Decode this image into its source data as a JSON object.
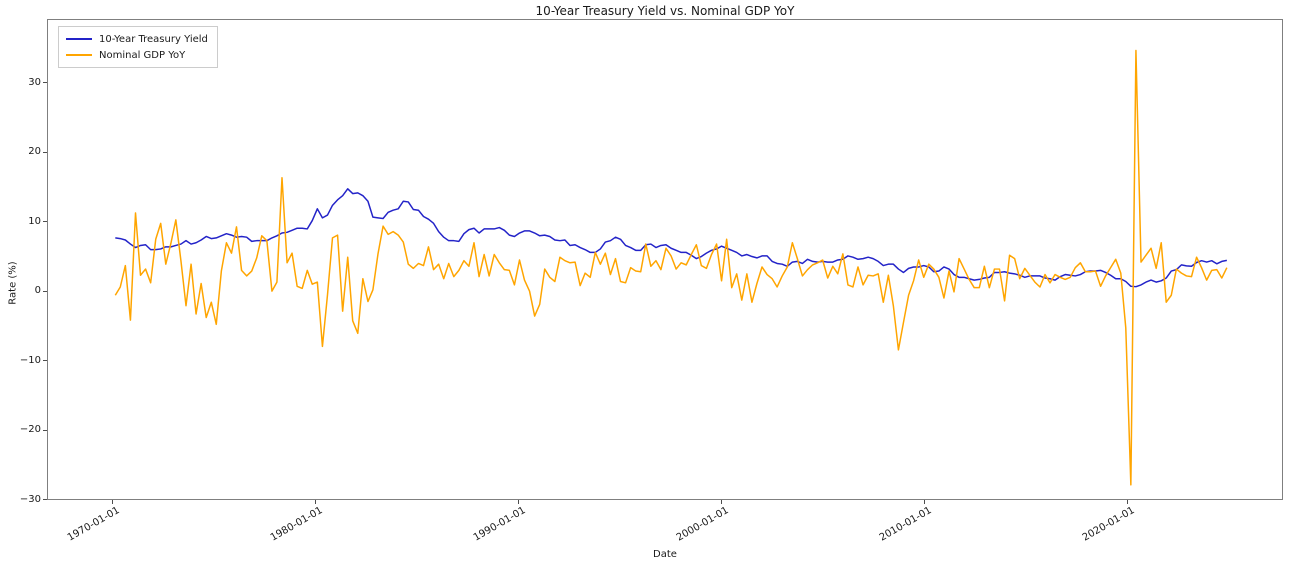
{
  "figure": {
    "title": "10-Year Treasury Yield vs. Nominal GDP YoY",
    "xlabel": "Date",
    "ylabel": "Rate (%)"
  },
  "legend": {
    "items": [
      {
        "label": "10-Year Treasury Yield",
        "color": "#2323c8"
      },
      {
        "label": "Nominal GDP YoY",
        "color": "#ffa500"
      }
    ]
  },
  "chart_data": {
    "type": "line",
    "title": "10-Year Treasury Yield vs. Nominal GDP YoY",
    "xlabel": "Date",
    "ylabel": "Rate (%)",
    "grid": false,
    "legend_position": "upper left",
    "x_start_year": 1970.0,
    "x_step_years": 0.25,
    "x_frequency": "quarterly",
    "xlim_years": [
      1966.75,
      2027.65
    ],
    "ylim": [
      -30.05,
      39.2
    ],
    "x_tick_years": [
      1970,
      1980,
      1990,
      2000,
      2010,
      2020
    ],
    "x_tick_labels": [
      "1970-01-01",
      "1980-01-01",
      "1990-01-01",
      "2000-01-01",
      "2010-01-01",
      "2020-01-01"
    ],
    "y_ticks": [
      30,
      20,
      10,
      0,
      -10,
      -20,
      -30
    ],
    "y_tick_labels": [
      "30",
      "20",
      "10",
      "0",
      "−10",
      "−20",
      "−30"
    ],
    "series": [
      {
        "name": "10-Year Treasury Yield",
        "color": "#2323c8",
        "values": [
          7.7,
          7.6,
          7.4,
          6.8,
          6.3,
          6.6,
          6.7,
          6.0,
          6.0,
          6.1,
          6.4,
          6.4,
          6.6,
          6.8,
          7.3,
          6.8,
          7.0,
          7.4,
          7.9,
          7.6,
          7.7,
          8.0,
          8.3,
          8.1,
          7.8,
          7.9,
          7.8,
          7.2,
          7.3,
          7.3,
          7.3,
          7.7,
          8.0,
          8.4,
          8.5,
          8.8,
          9.1,
          9.1,
          9.0,
          10.2,
          11.9,
          10.6,
          11.0,
          12.4,
          13.2,
          13.8,
          14.8,
          14.1,
          14.2,
          13.8,
          13.0,
          10.7,
          10.6,
          10.5,
          11.4,
          11.7,
          11.9,
          13.0,
          12.9,
          11.8,
          11.7,
          10.8,
          10.4,
          9.8,
          8.6,
          7.8,
          7.3,
          7.3,
          7.2,
          8.3,
          8.9,
          9.1,
          8.4,
          9.0,
          9.0,
          9.0,
          9.2,
          8.8,
          8.1,
          7.9,
          8.4,
          8.7,
          8.7,
          8.4,
          8.0,
          8.1,
          7.9,
          7.4,
          7.3,
          7.4,
          6.6,
          6.7,
          6.3,
          6.0,
          5.6,
          5.6,
          6.1,
          7.1,
          7.3,
          7.8,
          7.5,
          6.6,
          6.3,
          5.9,
          5.9,
          6.7,
          6.8,
          6.3,
          6.6,
          6.7,
          6.2,
          5.9,
          5.6,
          5.6,
          5.2,
          4.7,
          5.0,
          5.5,
          5.9,
          6.1,
          6.5,
          6.2,
          5.9,
          5.6,
          5.1,
          5.3,
          5.0,
          4.8,
          5.1,
          5.1,
          4.3,
          4.0,
          3.9,
          3.6,
          4.2,
          4.3,
          4.0,
          4.6,
          4.3,
          4.2,
          4.3,
          4.2,
          4.2,
          4.5,
          4.6,
          5.1,
          4.9,
          4.6,
          4.7,
          4.9,
          4.7,
          4.3,
          3.7,
          3.9,
          3.9,
          3.2,
          2.7,
          3.3,
          3.5,
          3.5,
          3.7,
          3.5,
          2.8,
          2.9,
          3.5,
          3.2,
          2.4,
          2.0,
          2.0,
          1.8,
          1.6,
          1.7,
          1.9,
          2.0,
          2.7,
          2.7,
          2.8,
          2.6,
          2.5,
          2.3,
          2.0,
          2.2,
          2.2,
          2.2,
          1.9,
          1.8,
          1.6,
          2.1,
          2.4,
          2.3,
          2.2,
          2.4,
          2.8,
          2.9,
          2.9,
          3.0,
          2.7,
          2.3,
          1.8,
          1.8,
          1.4,
          0.7,
          0.65,
          0.9,
          1.3,
          1.6,
          1.3,
          1.5,
          1.9,
          2.9,
          3.1,
          3.8,
          3.65,
          3.6,
          4.15,
          4.4,
          4.2,
          4.4,
          3.95,
          4.3,
          4.45
        ]
      },
      {
        "name": "Nominal GDP YoY",
        "color": "#ffa500",
        "values": [
          -0.6,
          0.6,
          3.7,
          -4.2,
          11.3,
          2.3,
          3.2,
          1.2,
          7.5,
          9.8,
          3.9,
          6.9,
          10.3,
          4.4,
          -2.1,
          3.9,
          -3.3,
          1.1,
          -3.8,
          -1.6,
          -4.8,
          2.9,
          7.0,
          5.5,
          9.3,
          3.0,
          2.2,
          2.9,
          4.8,
          8.0,
          7.3,
          0.0,
          1.3,
          16.4,
          4.1,
          5.5,
          0.7,
          0.4,
          3.0,
          1.0,
          1.3,
          -8.0,
          -0.5,
          7.7,
          8.1,
          -2.9,
          4.9,
          -4.3,
          -6.1,
          1.8,
          -1.5,
          0.2,
          5.4,
          9.4,
          8.2,
          8.6,
          8.1,
          7.1,
          3.9,
          3.3,
          4.0,
          3.7,
          6.4,
          3.1,
          3.9,
          1.8,
          4.0,
          2.1,
          3.0,
          4.4,
          3.6,
          7.0,
          2.1,
          5.3,
          2.2,
          5.3,
          4.1,
          3.1,
          3.0,
          0.9,
          4.5,
          1.6,
          0.0,
          -3.6,
          -1.9,
          3.2,
          2.0,
          1.4,
          4.9,
          4.4,
          4.1,
          4.2,
          0.8,
          2.6,
          2.0,
          5.6,
          3.9,
          5.5,
          2.4,
          4.7,
          1.4,
          1.2,
          3.4,
          2.9,
          2.8,
          6.8,
          3.6,
          4.4,
          3.1,
          6.2,
          5.1,
          3.2,
          4.1,
          3.8,
          5.3,
          6.7,
          3.7,
          3.3,
          5.3,
          6.8,
          1.5,
          7.5,
          0.5,
          2.5,
          -1.3,
          2.5,
          -1.6,
          1.1,
          3.5,
          2.4,
          1.8,
          0.6,
          2.2,
          3.5,
          7.0,
          4.7,
          2.2,
          3.1,
          3.8,
          4.1,
          4.5,
          1.9,
          3.6,
          2.5,
          5.4,
          0.9,
          0.6,
          3.5,
          0.9,
          2.3,
          2.2,
          2.5,
          -1.6,
          2.3,
          -2.1,
          -8.5,
          -4.5,
          -0.6,
          1.5,
          4.5,
          2.0,
          3.9,
          3.2,
          2.0,
          -1.0,
          2.9,
          -0.1,
          4.7,
          3.2,
          1.7,
          0.5,
          0.5,
          3.6,
          0.5,
          3.2,
          3.2,
          -1.4,
          5.2,
          4.7,
          1.8,
          3.3,
          2.3,
          1.3,
          0.6,
          2.4,
          1.2,
          2.4,
          2.0,
          1.7,
          2.0,
          3.4,
          4.1,
          2.8,
          2.8,
          2.9,
          0.7,
          2.2,
          3.4,
          4.6,
          2.6,
          -5.3,
          -28.0,
          34.8,
          4.2,
          5.2,
          6.2,
          3.3,
          7.0,
          -1.6,
          -0.6,
          3.2,
          2.6,
          2.2,
          2.1,
          4.9,
          3.4,
          1.6,
          3.0,
          3.1,
          1.9,
          3.4
        ]
      }
    ]
  }
}
